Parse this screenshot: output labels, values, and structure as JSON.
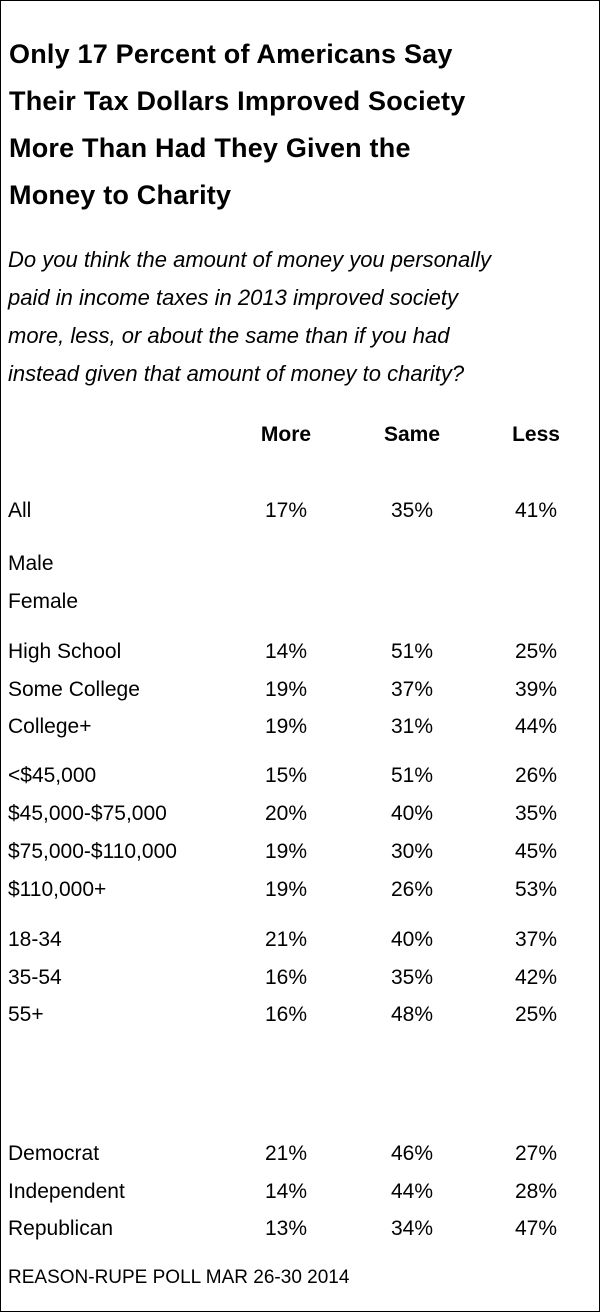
{
  "title_lines": [
    "Only 17 Percent of Americans Say",
    "Their Tax Dollars Improved Society",
    "More Than Had They Given the",
    "Money to Charity"
  ],
  "question_lines": [
    "Do you think the amount of money you personally",
    "paid in income taxes in 2013 improved society",
    "more, less, or about the same than if you had",
    "instead given that amount of money to charity?"
  ],
  "source": "REASON-RUPE POLL MAR 26-30 2014",
  "chart_data": {
    "type": "table",
    "columns": [
      "More",
      "Same",
      "Less"
    ],
    "rows": [
      {
        "label": "All",
        "values": [
          "17%",
          "35%",
          "41%"
        ]
      },
      {
        "label": "Male",
        "values": [
          "",
          "",
          ""
        ]
      },
      {
        "label": "Female",
        "values": [
          "",
          "",
          ""
        ]
      },
      {
        "label": "High School",
        "values": [
          "14%",
          "51%",
          "25%"
        ]
      },
      {
        "label": "Some College",
        "values": [
          "19%",
          "37%",
          "39%"
        ]
      },
      {
        "label": "College+",
        "values": [
          "19%",
          "31%",
          "44%"
        ]
      },
      {
        "label": "<$45,000",
        "values": [
          "15%",
          "51%",
          "26%"
        ]
      },
      {
        "label": "$45,000-$75,000",
        "values": [
          "20%",
          "40%",
          "35%"
        ]
      },
      {
        "label": "$75,000-$110,000",
        "values": [
          "19%",
          "30%",
          "45%"
        ]
      },
      {
        "label": "$110,000+",
        "values": [
          "19%",
          "26%",
          "53%"
        ]
      },
      {
        "label": "18-34",
        "values": [
          "21%",
          "40%",
          "37%"
        ]
      },
      {
        "label": "35-54",
        "values": [
          "16%",
          "35%",
          "42%"
        ]
      },
      {
        "label": "55+",
        "values": [
          "16%",
          "48%",
          "25%"
        ]
      },
      {
        "label": "Democrat",
        "values": [
          "21%",
          "46%",
          "27%"
        ]
      },
      {
        "label": "Independent",
        "values": [
          "14%",
          "44%",
          "28%"
        ]
      },
      {
        "label": "Republican",
        "values": [
          "13%",
          "34%",
          "47%"
        ]
      }
    ]
  }
}
